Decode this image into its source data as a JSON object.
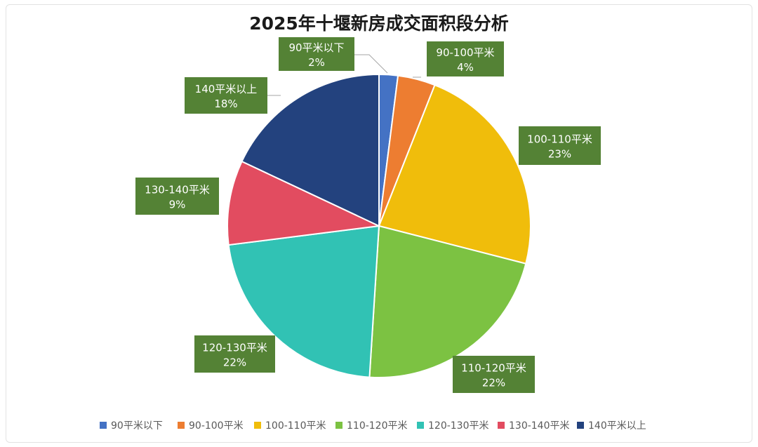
{
  "chart_data": {
    "type": "pie",
    "title": "2025年十堰新房成交面积段分析",
    "categories": [
      "90平米以下",
      "90-100平米",
      "100-110平米",
      "110-120平米",
      "120-130平米",
      "130-140平米",
      "140平米以上"
    ],
    "values": [
      2,
      4,
      23,
      22,
      22,
      9,
      18
    ],
    "value_labels": [
      "2%",
      "4%",
      "23%",
      "22%",
      "22%",
      "9%",
      "18%"
    ],
    "unit": "%",
    "colors": [
      "#4472C4",
      "#ED7D31",
      "#F0BD0B",
      "#7CC242",
      "#31C2B4",
      "#E24C60",
      "#23427E"
    ],
    "label_box_color": "#548235",
    "legend_position": "bottom"
  }
}
